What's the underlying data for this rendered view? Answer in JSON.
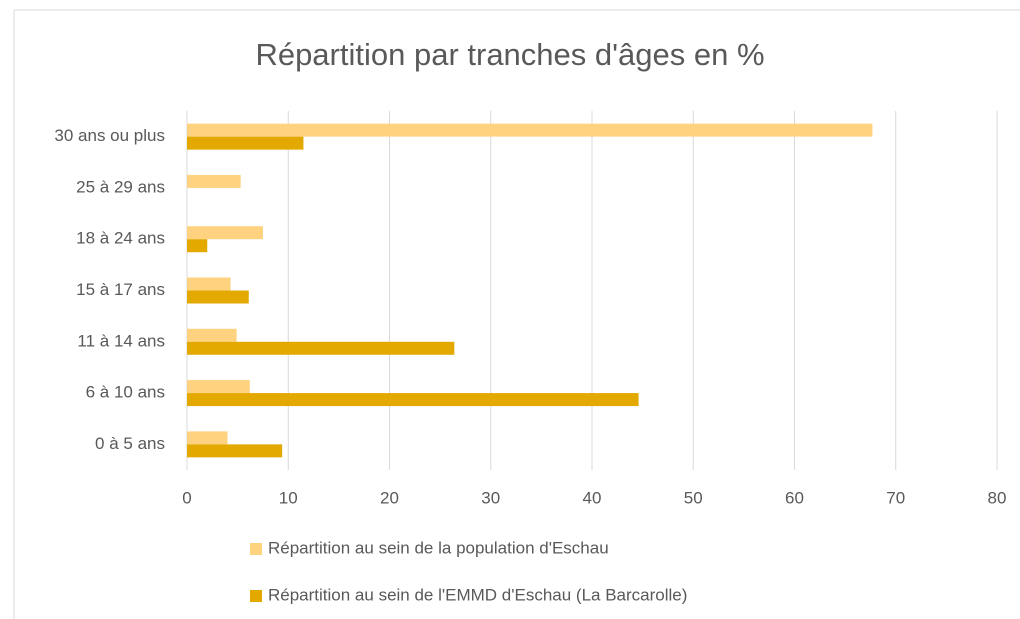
{
  "chart_data": {
    "type": "hbar",
    "title": "Répartition par tranches d'âges en %",
    "categories": [
      "30 ans ou plus",
      "25 à 29 ans",
      "18 à 24 ans",
      "15 à 17 ans",
      "11 à 14 ans",
      "6 à 10 ans",
      "0 à 5 ans"
    ],
    "series": [
      {
        "name": "Répartition au sein de la population d'Eschau",
        "color": "#ffd280",
        "values": [
          67.7,
          5.3,
          7.5,
          4.3,
          4.9,
          6.2,
          4.0
        ]
      },
      {
        "name": "Répartition au sein de l'EMMD d'Eschau (La Barcarolle)",
        "color": "#e3a900",
        "values": [
          11.5,
          0,
          2.0,
          6.1,
          26.4,
          44.6,
          9.4
        ]
      }
    ],
    "xlim": [
      0,
      80
    ],
    "xticks": [
      0,
      10,
      20,
      30,
      40,
      50,
      60,
      70,
      80
    ],
    "grid": true,
    "legend": "bottom"
  }
}
